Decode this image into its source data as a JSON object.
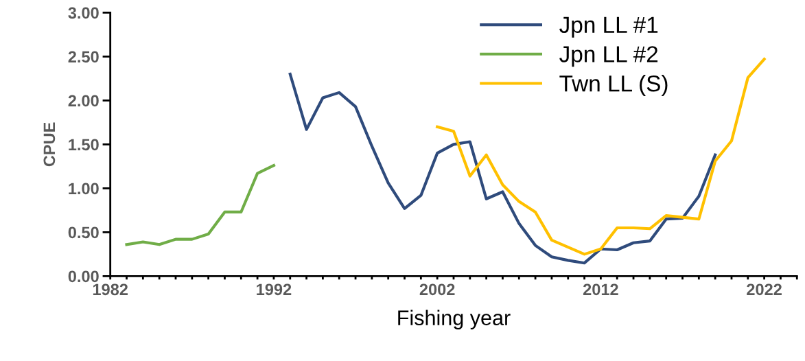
{
  "chart_data": {
    "type": "line",
    "xlabel": "Fishing year",
    "ylabel": "CPUE",
    "xlim": [
      1982,
      2024
    ],
    "ylim": [
      0,
      3
    ],
    "xticks": [
      {
        "value": 1982,
        "label": "1982"
      },
      {
        "value": 1983,
        "label": null
      },
      {
        "value": 1984,
        "label": null
      },
      {
        "value": 1985,
        "label": null
      },
      {
        "value": 1986,
        "label": null
      },
      {
        "value": 1987,
        "label": null
      },
      {
        "value": 1988,
        "label": null
      },
      {
        "value": 1989,
        "label": null
      },
      {
        "value": 1990,
        "label": null
      },
      {
        "value": 1991,
        "label": null
      },
      {
        "value": 1992,
        "label": "1992"
      },
      {
        "value": 1993,
        "label": null
      },
      {
        "value": 1994,
        "label": null
      },
      {
        "value": 1995,
        "label": null
      },
      {
        "value": 1996,
        "label": null
      },
      {
        "value": 1997,
        "label": null
      },
      {
        "value": 1998,
        "label": null
      },
      {
        "value": 1999,
        "label": null
      },
      {
        "value": 2000,
        "label": null
      },
      {
        "value": 2001,
        "label": null
      },
      {
        "value": 2002,
        "label": "2002"
      },
      {
        "value": 2003,
        "label": null
      },
      {
        "value": 2004,
        "label": null
      },
      {
        "value": 2005,
        "label": null
      },
      {
        "value": 2006,
        "label": null
      },
      {
        "value": 2007,
        "label": null
      },
      {
        "value": 2008,
        "label": null
      },
      {
        "value": 2009,
        "label": null
      },
      {
        "value": 2010,
        "label": null
      },
      {
        "value": 2011,
        "label": null
      },
      {
        "value": 2012,
        "label": "2012"
      },
      {
        "value": 2013,
        "label": null
      },
      {
        "value": 2014,
        "label": null
      },
      {
        "value": 2015,
        "label": null
      },
      {
        "value": 2016,
        "label": null
      },
      {
        "value": 2017,
        "label": null
      },
      {
        "value": 2018,
        "label": null
      },
      {
        "value": 2019,
        "label": null
      },
      {
        "value": 2020,
        "label": null
      },
      {
        "value": 2021,
        "label": null
      },
      {
        "value": 2022,
        "label": "2022"
      },
      {
        "value": 2023,
        "label": null
      },
      {
        "value": 2024,
        "label": null
      }
    ],
    "yticks": [
      {
        "value": 0,
        "label": "0.00"
      },
      {
        "value": 0.5,
        "label": "0.50"
      },
      {
        "value": 1,
        "label": "1.00"
      },
      {
        "value": 1.5,
        "label": "1.50"
      },
      {
        "value": 2,
        "label": "2.00"
      },
      {
        "value": 2.5,
        "label": "2.50"
      },
      {
        "value": 3,
        "label": "3.00"
      }
    ],
    "grid": false,
    "legend": "top right",
    "marker": "none",
    "line_style": "solid",
    "series": [
      {
        "name": "Jpn LL #1",
        "color": "#2f4b7c",
        "x": [
          1993,
          1994,
          1995,
          1996,
          1997,
          1998,
          1999,
          2000,
          2001,
          2002,
          2003,
          2004,
          2005,
          2006,
          2007,
          2008,
          2009,
          2010,
          2011,
          2012,
          2013,
          2014,
          2015,
          2016,
          2017,
          2018,
          2019
        ],
        "values": [
          2.3,
          1.67,
          2.03,
          2.09,
          1.93,
          1.48,
          1.06,
          0.77,
          0.92,
          1.4,
          1.5,
          1.53,
          0.88,
          0.96,
          0.6,
          0.35,
          0.22,
          0.18,
          0.15,
          0.31,
          0.3,
          0.38,
          0.4,
          0.65,
          0.66,
          0.91,
          1.38
        ]
      },
      {
        "name": "Jpn LL #2",
        "color": "#70ad47",
        "x": [
          1983,
          1984,
          1985,
          1986,
          1987,
          1988,
          1989,
          1990,
          1991,
          1992
        ],
        "values": [
          0.36,
          0.39,
          0.36,
          0.42,
          0.42,
          0.48,
          0.73,
          0.73,
          1.17,
          1.26
        ]
      },
      {
        "name": "Twn LL (S)",
        "color": "#ffc000",
        "x": [
          2002,
          2003,
          2004,
          2005,
          2006,
          2007,
          2008,
          2009,
          2010,
          2011,
          2012,
          2013,
          2014,
          2015,
          2016,
          2017,
          2018,
          2019,
          2020,
          2021,
          2022
        ],
        "values": [
          1.7,
          1.65,
          1.14,
          1.38,
          1.04,
          0.85,
          0.73,
          0.41,
          0.33,
          0.25,
          0.31,
          0.55,
          0.55,
          0.54,
          0.69,
          0.67,
          0.65,
          1.31,
          1.54,
          2.26,
          2.47
        ]
      }
    ]
  }
}
